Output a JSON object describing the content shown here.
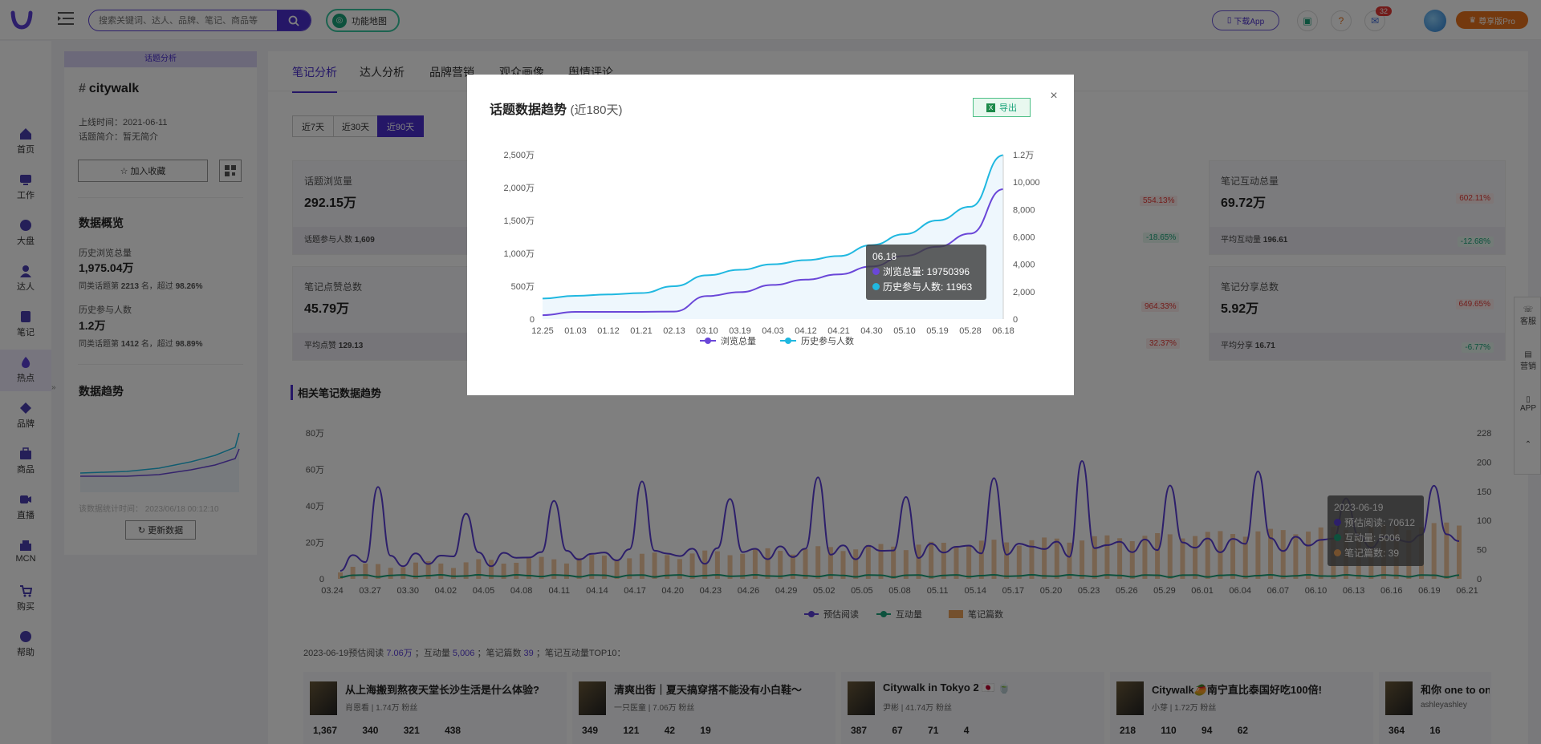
{
  "header": {
    "search_placeholder": "搜索关键词、达人、品牌、笔记、商品等",
    "feature_map": "功能地图",
    "download_app": "下载App",
    "help": "?",
    "message_count": "32",
    "vip": "尊享版Pro"
  },
  "nav": [
    {
      "label": "首页",
      "icon": "home-icon"
    },
    {
      "label": "工作",
      "icon": "work-icon"
    },
    {
      "label": "大盘",
      "icon": "dashboard-icon"
    },
    {
      "label": "达人",
      "icon": "influencer-icon"
    },
    {
      "label": "笔记",
      "icon": "note-icon"
    },
    {
      "label": "热点",
      "icon": "hot-icon"
    },
    {
      "label": "品牌",
      "icon": "brand-icon"
    },
    {
      "label": "商品",
      "icon": "goods-icon"
    },
    {
      "label": "直播",
      "icon": "live-icon"
    },
    {
      "label": "MCN",
      "icon": "mcn-icon"
    },
    {
      "label": "购买",
      "icon": "buy-icon"
    },
    {
      "label": "帮助",
      "icon": "help-icon"
    }
  ],
  "topic": {
    "panel_title": "话题分析",
    "name": "citywalk",
    "online_label": "上线时间：",
    "online_date": "2021-06-11",
    "intro_label": "话题简介：",
    "intro": "暂无简介",
    "favorite_btn": "加入收藏",
    "overview_title": "数据概览",
    "history_views_label": "历史浏览总量",
    "history_views": "1,975.04万",
    "history_views_rank_prefix": "同类话题第",
    "history_views_rank": "2213",
    "history_views_rank_mid": "名，超过",
    "history_views_pct": "98.26%",
    "history_people_label": "历史参与人数",
    "history_people": "1.2万",
    "history_people_rank_prefix": "同类话题第",
    "history_people_rank": "1412",
    "history_people_rank_mid": "名，超过",
    "history_people_pct": "98.89%",
    "trend_title": "数据趋势",
    "stat_time_label": "该数据统计时间：",
    "stat_time": "2023/06/18 00:12:10",
    "refresh_btn": "更新数据"
  },
  "tabs": [
    "笔记分析",
    "达人分析",
    "品牌营销",
    "观众画像",
    "舆情评论"
  ],
  "ranges": [
    "近7天",
    "近30天",
    "近90天"
  ],
  "stats": [
    {
      "label": "话题浏览量",
      "value": "292.15万",
      "sub_label": "话题参与人数",
      "sub_value": "1,609"
    },
    {
      "label": "笔记点赞总数",
      "value": "45.79万",
      "sub_label": "平均点赞",
      "sub_value": "129.13"
    },
    {
      "label": "笔记互动总量",
      "value": "69.72万",
      "pct": "602.11%",
      "sub_label": "平均互动量",
      "sub_value": "196.61",
      "sub_pct": "-12.68%"
    },
    {
      "label": "笔记分享总数",
      "value": "5.92万",
      "pct": "649.65%",
      "sub_label": "平均分享",
      "sub_value": "16.71",
      "sub_pct": "-6.77%"
    }
  ],
  "hidden_pcts": {
    "a": "554.13%",
    "b": "-18.65%",
    "c": "964.33%",
    "d": "32.37%"
  },
  "related_title": "相关笔记数据趋势",
  "bottom_chart": {
    "x_ticks": [
      "03.24",
      "03.27",
      "03.30",
      "04.02",
      "04.05",
      "04.08",
      "04.11",
      "04.14",
      "04.17",
      "04.20",
      "04.23",
      "04.26",
      "04.29",
      "05.02",
      "05.05",
      "05.08",
      "05.11",
      "05.14",
      "05.17",
      "05.20",
      "05.23",
      "05.26",
      "05.29",
      "06.01",
      "06.04",
      "06.07",
      "06.10",
      "06.13",
      "06.16",
      "06.19",
      "06.21"
    ],
    "y_left_ticks": [
      "0",
      "20万",
      "40万",
      "60万",
      "80万"
    ],
    "y_right_ticks": [
      "0",
      "50",
      "100",
      "150",
      "200",
      "228"
    ],
    "legend": [
      "预估阅读",
      "互动量",
      "笔记篇数"
    ],
    "tooltip_date": "2023-06-19",
    "tooltip_rows": [
      "预估阅读: 70612",
      "互动量: 5006",
      "笔记篇数: 39"
    ]
  },
  "summary": {
    "date": "2023-06-19",
    "read_label": "预估阅读",
    "read": "7.06万",
    "inter_label": "；互动量",
    "inter": "5,006",
    "notes_label": "；笔记篇数",
    "notes": "39",
    "tail": "；笔记互动量TOP10："
  },
  "notes": [
    {
      "title": "从上海搬到熬夜天堂长沙生活是什么体验?",
      "author": "肖恩看",
      "fans": "1.74万 粉丝",
      "nums": "1,367 340 321 438"
    },
    {
      "title": "清爽出街｜夏天搞穿搭不能没有小白鞋～",
      "author": "一只医童",
      "fans": "7.06万 粉丝",
      "nums": "349 121 42 19"
    },
    {
      "title": "Citywalk in Tokyo 2 🇯🇵 🍵",
      "author": "尹彬",
      "fans": "41.74万 粉丝",
      "nums": "387 67 71 4"
    },
    {
      "title": "Citywalk🥭南宁直比泰国好吃100倍!",
      "author": "小芽",
      "fans": "1.72万 粉丝",
      "nums": "218 110 94 62"
    },
    {
      "title": "和你 one to one",
      "author": "ashleyashley",
      "fans": "",
      "nums": "364 16"
    }
  ],
  "right_float": [
    "客服",
    "营销",
    "APP"
  ],
  "modal": {
    "title": "话题数据趋势",
    "subtitle": "(近180天)",
    "export": "导出",
    "close": "×",
    "tooltip_date": "06.18",
    "tooltip_views": "浏览总量: 19750396",
    "tooltip_people": "历史参与人数: 11963"
  },
  "chart_data": {
    "type": "line",
    "categories": [
      "12.25",
      "01.03",
      "01.12",
      "01.21",
      "02.13",
      "03.10",
      "03.19",
      "04.03",
      "04.12",
      "04.21",
      "04.30",
      "05.10",
      "05.19",
      "05.28",
      "06.18"
    ],
    "y_left_ticks": [
      "0",
      "500万",
      "1,000万",
      "1,500万",
      "2,000万",
      "2,500万"
    ],
    "y_right_ticks": [
      "0",
      "2,000",
      "4,000",
      "6,000",
      "8,000",
      "10,000",
      "1.2万"
    ],
    "ylim_left": [
      0,
      25000000
    ],
    "ylim_right": [
      0,
      12000
    ],
    "series": [
      {
        "name": "浏览总量",
        "axis": "left",
        "color": "#6a47d8",
        "values": [
          600000,
          1100000,
          1100000,
          1100000,
          1150000,
          3500000,
          4100000,
          5200000,
          6000000,
          6800000,
          8000000,
          9600000,
          11000000,
          13000000,
          19750396
        ]
      },
      {
        "name": "历史参与人数",
        "axis": "right",
        "color": "#20b8e0",
        "values": [
          1500,
          1700,
          1800,
          1900,
          2400,
          3200,
          3600,
          4000,
          4300,
          4600,
          5400,
          6200,
          7200,
          8200,
          11963
        ]
      }
    ],
    "legend": [
      "浏览总量",
      "历史参与人数"
    ]
  },
  "colors": {
    "accent": "#4a2fcf",
    "green": "#1aa37a",
    "orange": "#e8a05a"
  }
}
